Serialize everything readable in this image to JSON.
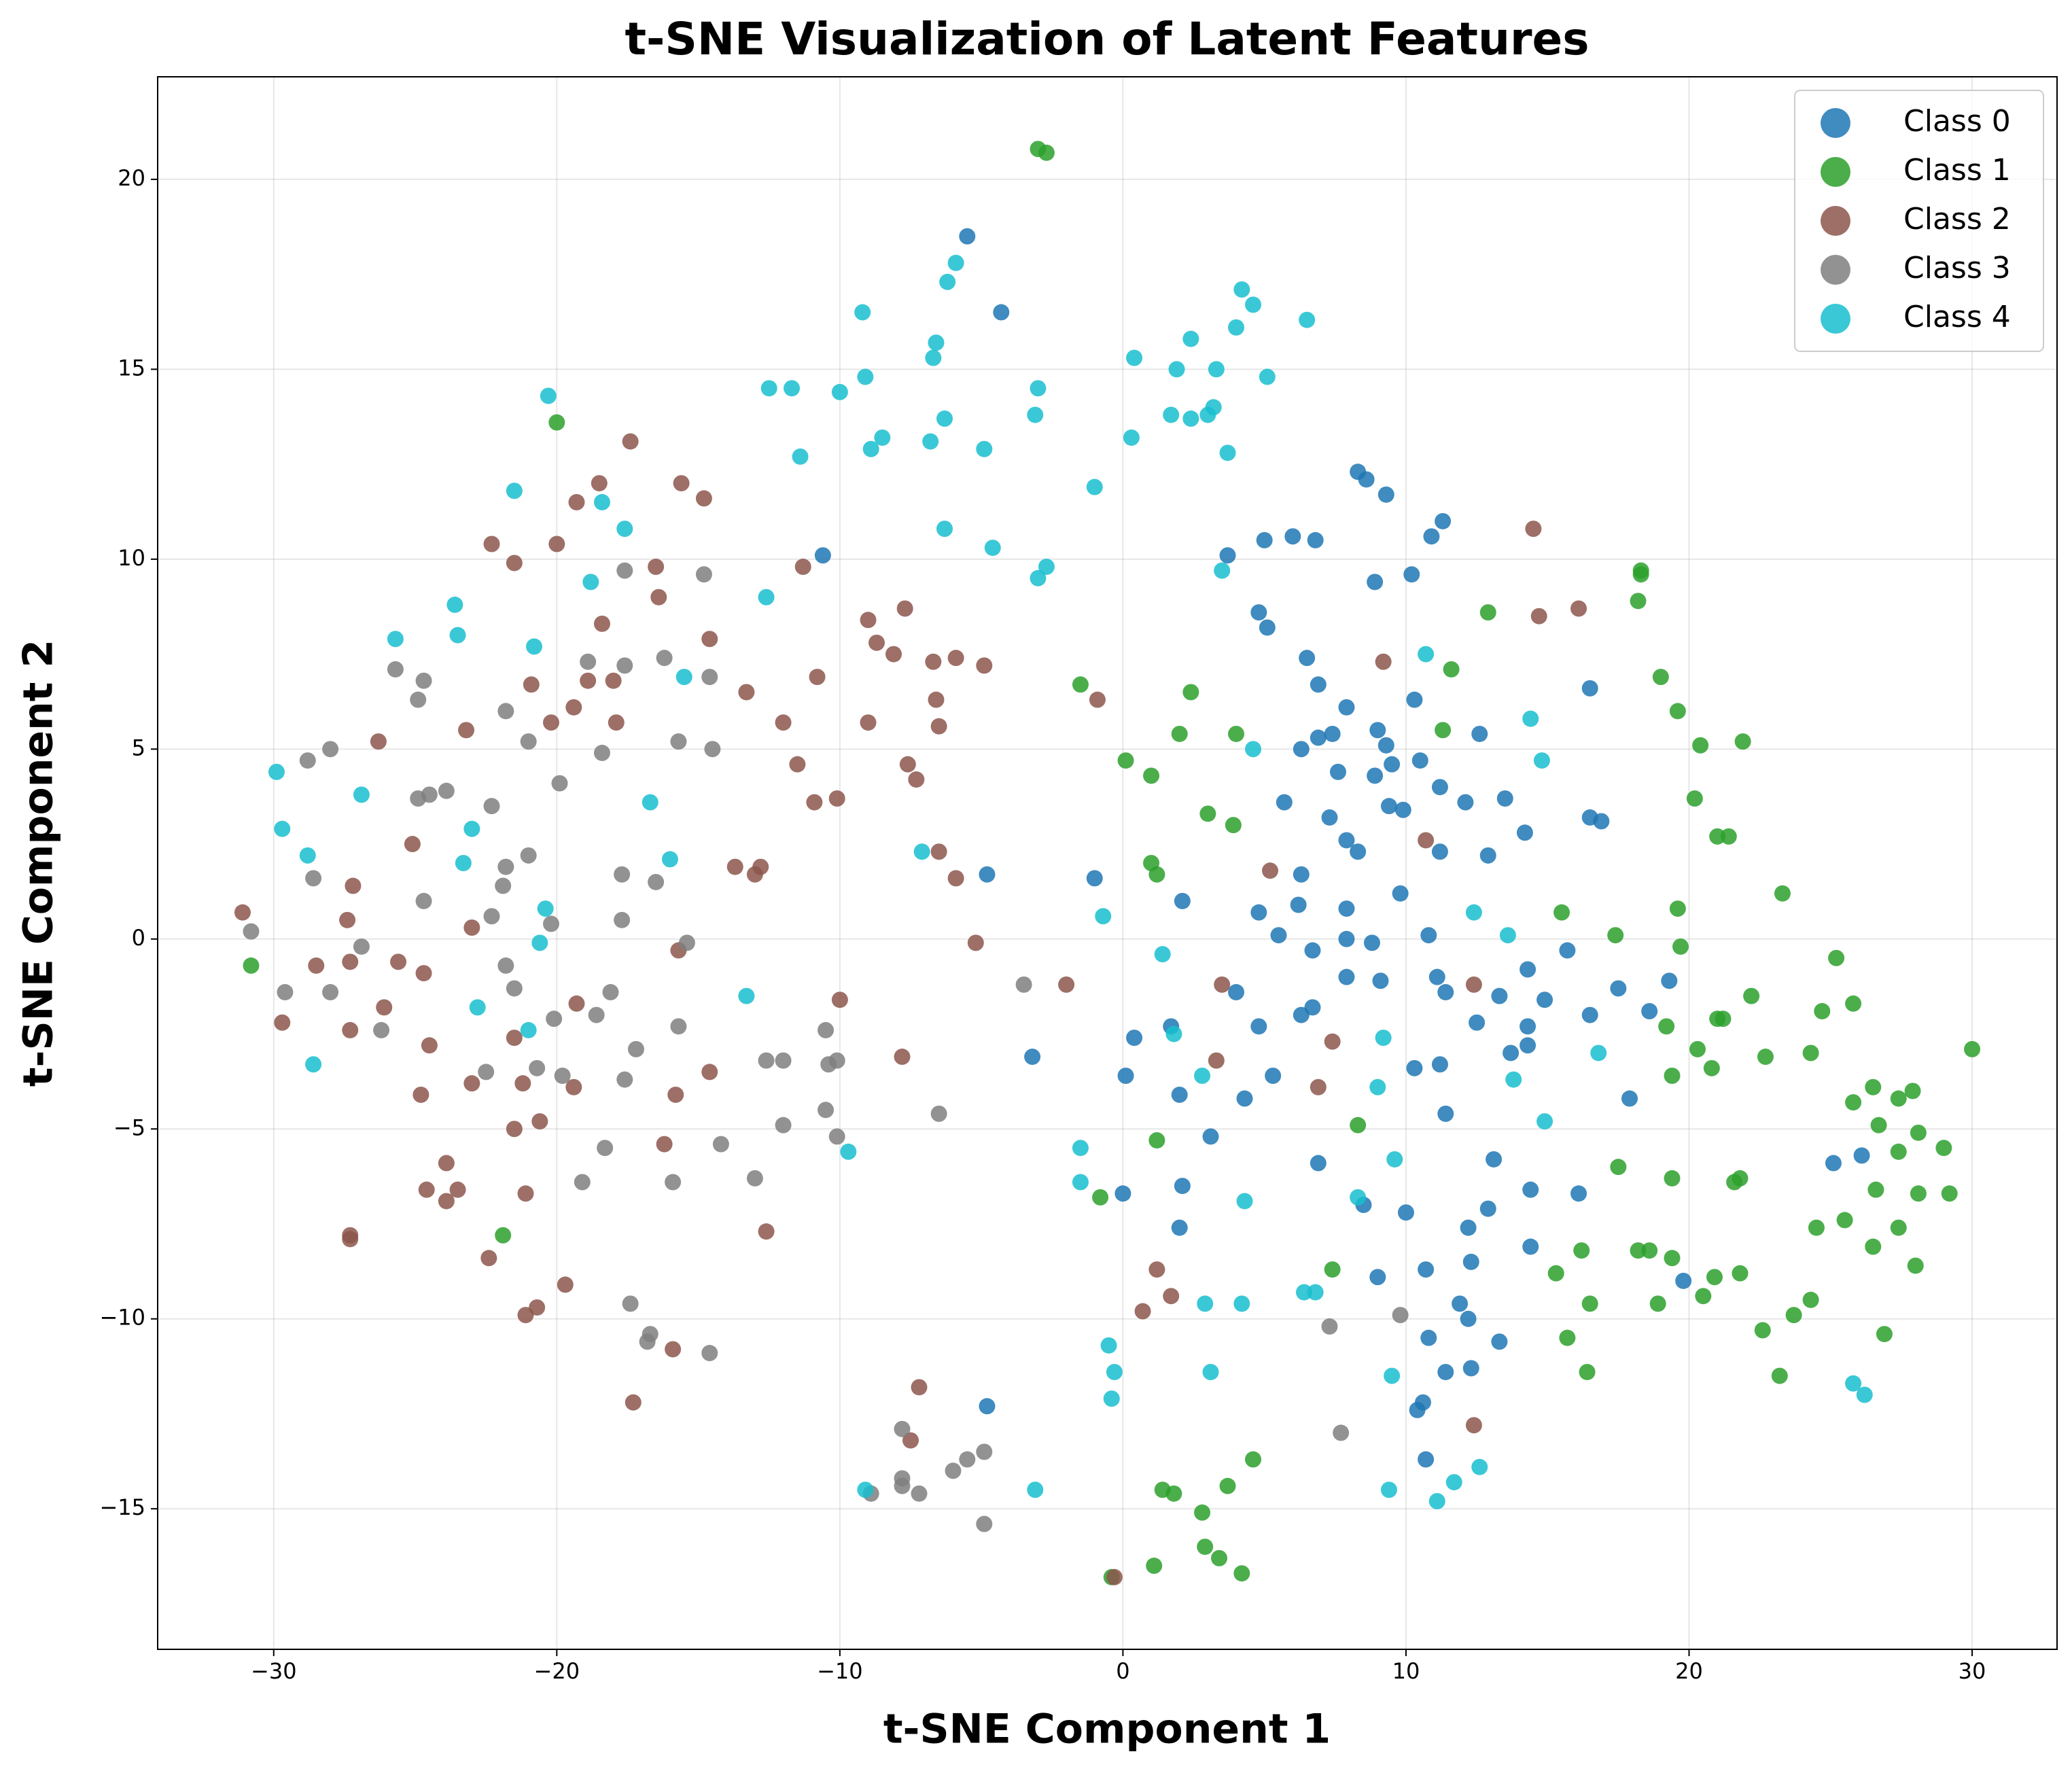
{
  "chart_data": {
    "type": "scatter",
    "title": "t-SNE Visualization of Latent Features",
    "xlabel": "t-SNE Component 1",
    "ylabel": "t-SNE Component 2",
    "xlim": [
      -34.1,
      33.0
    ],
    "ylim": [
      -18.7,
      22.7
    ],
    "xticks": [
      {
        "value": -30,
        "label": "−30"
      },
      {
        "value": -20,
        "label": "−20"
      },
      {
        "value": -10,
        "label": "−10"
      },
      0,
      10,
      20,
      30
    ],
    "yticks": [
      {
        "value": -15,
        "label": "−15"
      },
      {
        "value": -10,
        "label": "−10"
      },
      {
        "value": -5,
        "label": "−5"
      },
      0,
      5,
      10,
      15,
      20
    ],
    "grid": true,
    "legend": "upper right",
    "series": [
      {
        "name": "Class 0",
        "color": "#1f77b4",
        "x": [
          -5.5,
          -4.3,
          -10.6,
          -4.8,
          -3.2,
          -4.8,
          8.3,
          8.6,
          9.3,
          11.3,
          10.9,
          6.0,
          6.8,
          5.0,
          3.7,
          10.2,
          8.9,
          4.8,
          5.1,
          6.5,
          6.9,
          16.5,
          7.9,
          10.3,
          9.0,
          12.6,
          6.9,
          7.4,
          6.3,
          9.3,
          9.5,
          10.5,
          7.6,
          8.9,
          11.2,
          13.5,
          12.1,
          5.7,
          9.4,
          9.9,
          7.3,
          16.5,
          16.9,
          14.2,
          7.9,
          8.3,
          11.2,
          12.9,
          6.3,
          -1.0,
          2.1,
          9.8,
          4.8,
          6.2,
          7.9,
          5.5,
          7.9,
          10.8,
          8.8,
          6.7,
          15.7,
          14.3,
          11.1,
          7.9,
          9.1,
          19.3,
          4.0,
          11.4,
          17.5,
          13.3,
          14.9,
          6.7,
          6.3,
          16.5,
          18.6,
          1.7,
          4.8,
          12.5,
          14.3,
          0.4,
          14.3,
          13.7,
          10.3,
          11.2,
          0.1,
          5.3,
          2.0,
          4.3,
          17.9,
          11.4,
          3.1,
          13.1,
          6.9,
          25.1,
          26.1,
          0.0,
          2.1,
          14.4,
          16.1,
          8.5,
          10.0,
          12.9,
          2.0,
          12.2,
          14.4,
          12.3,
          10.7,
          9.0,
          19.8,
          11.9,
          12.2,
          10.8,
          13.3,
          11.4,
          12.3,
          10.6,
          10.4,
          10.7
        ],
        "y": [
          18.5,
          16.5,
          10.1,
          1.7,
          -3.1,
          -12.3,
          12.3,
          12.1,
          11.7,
          11.0,
          10.6,
          10.6,
          10.5,
          10.5,
          10.1,
          9.6,
          9.4,
          8.6,
          8.2,
          7.4,
          6.7,
          6.6,
          6.1,
          6.3,
          5.5,
          5.4,
          5.3,
          5.4,
          5.0,
          5.1,
          4.6,
          4.7,
          4.4,
          4.3,
          4.0,
          3.7,
          3.6,
          3.6,
          3.5,
          3.4,
          3.2,
          3.2,
          3.1,
          2.8,
          2.6,
          2.3,
          2.3,
          2.2,
          1.7,
          1.6,
          1.0,
          1.2,
          0.7,
          0.9,
          0.8,
          0.1,
          0.0,
          0.1,
          -0.1,
          -0.3,
          -0.3,
          -0.8,
          -1.0,
          -1.0,
          -1.1,
          -1.1,
          -1.4,
          -1.4,
          -1.3,
          -1.5,
          -1.6,
          -1.8,
          -2.0,
          -2.0,
          -1.9,
          -2.3,
          -2.3,
          -2.2,
          -2.3,
          -2.6,
          -2.8,
          -3.0,
          -3.4,
          -3.3,
          -3.6,
          -3.6,
          -4.1,
          -4.2,
          -4.2,
          -4.6,
          -5.2,
          -5.8,
          -5.9,
          -5.9,
          -5.7,
          -6.7,
          -6.5,
          -6.6,
          -6.7,
          -7.0,
          -7.2,
          -7.1,
          -7.6,
          -7.6,
          -8.1,
          -8.5,
          -8.7,
          -8.9,
          -9.0,
          -9.6,
          -10.0,
          -10.5,
          -10.6,
          -11.4,
          -11.3,
          -12.2,
          -12.4,
          -13.7
        ]
      },
      {
        "name": "Class 1",
        "color": "#2ca02c",
        "x": [
          -3.0,
          -2.7,
          -20.0,
          18.3,
          18.3,
          18.2,
          12.9,
          11.6,
          19.0,
          -1.5,
          2.4,
          19.6,
          11.3,
          2.0,
          4.0,
          21.9,
          20.4,
          0.1,
          1.0,
          20.2,
          3.0,
          3.9,
          21.0,
          21.4,
          1.0,
          1.2,
          23.3,
          19.6,
          15.5,
          17.4,
          19.7,
          25.2,
          -30.8,
          22.2,
          25.8,
          24.7,
          21.2,
          21.0,
          19.2,
          20.3,
          30.0,
          24.3,
          22.7,
          20.8,
          19.4,
          26.5,
          27.9,
          27.4,
          25.8,
          8.3,
          26.7,
          28.1,
          1.2,
          29.0,
          27.4,
          17.5,
          21.8,
          19.4,
          21.6,
          26.6,
          -0.8,
          28.1,
          29.2,
          25.5,
          24.5,
          27.4,
          -21.9,
          26.5,
          16.2,
          18.2,
          18.6,
          19.4,
          28.0,
          7.4,
          15.3,
          21.8,
          20.9,
          20.5,
          24.3,
          16.5,
          18.9,
          23.7,
          22.6,
          15.7,
          26.9,
          16.4,
          23.2,
          4.6,
          3.7,
          1.4,
          1.8,
          2.8,
          2.9,
          3.4,
          1.1,
          4.2,
          -0.4
        ],
        "y": [
          20.8,
          20.7,
          13.6,
          9.7,
          9.6,
          8.9,
          8.6,
          7.1,
          6.9,
          6.7,
          6.5,
          6.0,
          5.5,
          5.4,
          5.4,
          5.2,
          5.1,
          4.7,
          4.3,
          3.7,
          3.3,
          3.0,
          2.7,
          2.7,
          2.0,
          1.7,
          1.2,
          0.8,
          0.7,
          0.1,
          -0.2,
          -0.5,
          -0.7,
          -1.5,
          -1.7,
          -1.9,
          -2.1,
          -2.1,
          -2.3,
          -2.9,
          -2.9,
          -3.0,
          -3.1,
          -3.4,
          -3.6,
          -3.9,
          -4.0,
          -4.2,
          -4.3,
          -4.9,
          -4.9,
          -5.1,
          -5.3,
          -5.5,
          -5.6,
          -6.0,
          -6.3,
          -6.3,
          -6.4,
          -6.6,
          -6.8,
          -6.7,
          -6.7,
          -7.4,
          -7.6,
          -7.6,
          -7.8,
          -8.1,
          -8.2,
          -8.2,
          -8.2,
          -8.4,
          -8.6,
          -8.7,
          -8.8,
          -8.8,
          -8.9,
          -9.4,
          -9.5,
          -9.6,
          -9.6,
          -9.9,
          -10.3,
          -10.5,
          -10.4,
          -11.4,
          -11.5,
          -13.7,
          -14.4,
          -14.5,
          -14.6,
          -15.1,
          -16.0,
          -16.3,
          -16.5,
          -16.7,
          -16.8
        ]
      },
      {
        "name": "Class 2",
        "color": "#8c564b",
        "x": [
          -17.4,
          -15.6,
          -18.5,
          -14.8,
          -19.3,
          14.5,
          -22.3,
          -20.0,
          -21.5,
          -11.3,
          -16.5,
          -16.4,
          16.1,
          -7.7,
          14.7,
          -9.0,
          -18.4,
          -14.6,
          -8.7,
          -8.1,
          -5.9,
          -6.7,
          9.2,
          -4.9,
          -10.8,
          -18.9,
          -18.0,
          -20.9,
          -13.3,
          -0.9,
          -6.6,
          -19.4,
          -20.2,
          -12.0,
          -17.9,
          -9.0,
          -6.5,
          -23.2,
          -26.3,
          -7.6,
          -11.5,
          -7.3,
          -10.9,
          -10.1,
          10.7,
          -25.1,
          -6.5,
          -13.7,
          -12.8,
          -13.0,
          5.2,
          -5.9,
          -27.2,
          -31.1,
          -27.4,
          -23.0,
          -5.2,
          -15.7,
          -28.5,
          -27.3,
          -25.6,
          -24.7,
          12.4,
          -2.0,
          3.5,
          -10.0,
          -19.3,
          -26.1,
          -29.7,
          -27.3,
          -21.5,
          7.4,
          -24.5,
          -7.8,
          3.3,
          -14.6,
          -23.0,
          -21.2,
          -19.4,
          6.9,
          -24.8,
          -15.8,
          -20.6,
          -21.5,
          -16.2,
          -23.9,
          -24.6,
          -23.5,
          -23.9,
          -21.1,
          -12.6,
          -27.3,
          -27.3,
          -22.4,
          1.2,
          -19.7,
          1.7,
          -20.7,
          -21.1,
          0.7,
          -15.9,
          -7.2,
          -17.3,
          12.4,
          -7.5,
          -0.3
        ],
        "y": [
          13.1,
          12.0,
          12.0,
          11.6,
          11.5,
          10.8,
          10.4,
          10.4,
          9.9,
          9.8,
          9.8,
          9.0,
          8.7,
          8.7,
          8.5,
          8.4,
          8.3,
          7.9,
          7.8,
          7.5,
          7.4,
          7.3,
          7.3,
          7.2,
          6.9,
          6.8,
          6.8,
          6.7,
          6.5,
          6.3,
          6.3,
          6.1,
          5.7,
          5.7,
          5.7,
          5.7,
          5.6,
          5.5,
          5.2,
          4.6,
          4.6,
          4.2,
          3.6,
          3.7,
          2.6,
          2.5,
          2.3,
          1.9,
          1.9,
          1.7,
          1.8,
          1.6,
          1.4,
          0.7,
          0.5,
          0.3,
          -0.1,
          -0.3,
          -0.7,
          -0.6,
          -0.6,
          -0.9,
          -1.2,
          -1.2,
          -1.2,
          -1.6,
          -1.7,
          -1.8,
          -2.2,
          -2.4,
          -2.6,
          -2.7,
          -2.8,
          -3.1,
          -3.2,
          -3.5,
          -3.8,
          -3.8,
          -3.9,
          -3.9,
          -4.1,
          -4.1,
          -4.8,
          -5.0,
          -5.4,
          -5.9,
          -6.6,
          -6.6,
          -6.9,
          -6.7,
          -7.7,
          -7.8,
          -7.9,
          -8.4,
          -8.7,
          -9.1,
          -9.4,
          -9.7,
          -9.9,
          -9.8,
          -10.8,
          -11.8,
          -12.2,
          -12.8,
          -13.2,
          -16.8
        ]
      },
      {
        "name": "Class 3",
        "color": "#7f7f7f",
        "x": [
          -17.6,
          -14.8,
          -17.6,
          -18.9,
          -16.2,
          -25.7,
          -14.6,
          -24.7,
          -24.9,
          -21.8,
          -21.0,
          -15.7,
          -14.5,
          -28.0,
          -28.8,
          -18.4,
          -19.9,
          -23.9,
          -24.5,
          -24.9,
          -22.3,
          -21.0,
          -21.8,
          -17.7,
          -16.5,
          -28.6,
          -21.9,
          -24.7,
          -22.3,
          -17.7,
          -20.2,
          -30.8,
          -15.4,
          -26.9,
          -21.8,
          -21.5,
          -3.5,
          -29.6,
          -28.0,
          -18.1,
          -18.6,
          -20.1,
          -15.7,
          -26.2,
          -10.5,
          -17.2,
          -12.6,
          -12.0,
          -10.1,
          -10.4,
          -20.7,
          -22.5,
          -19.8,
          -17.6,
          -10.5,
          -6.5,
          -12.0,
          -10.1,
          -14.2,
          -18.3,
          -13.0,
          -19.1,
          -15.9,
          7.3,
          9.8,
          -17.4,
          -16.7,
          -16.8,
          -14.6,
          7.7,
          -7.8,
          -7.8,
          -6.0,
          -5.5,
          -4.9,
          -7.8,
          -7.2,
          -8.9,
          -4.9
        ],
        "y": [
          9.7,
          9.6,
          7.2,
          7.3,
          7.4,
          7.1,
          6.9,
          6.8,
          6.3,
          6.0,
          5.2,
          5.2,
          5.0,
          5.0,
          4.7,
          4.9,
          4.1,
          3.9,
          3.8,
          3.7,
          3.5,
          2.2,
          1.9,
          1.7,
          1.5,
          1.6,
          1.4,
          1.0,
          0.6,
          0.5,
          0.4,
          0.2,
          -0.1,
          -0.2,
          -0.7,
          -1.3,
          -1.2,
          -1.4,
          -1.4,
          -1.4,
          -2.0,
          -2.1,
          -2.3,
          -2.4,
          -2.4,
          -2.9,
          -3.2,
          -3.2,
          -3.2,
          -3.3,
          -3.4,
          -3.5,
          -3.6,
          -3.7,
          -4.5,
          -4.6,
          -4.9,
          -5.2,
          -5.4,
          -5.5,
          -6.3,
          -6.4,
          -6.4,
          -10.2,
          -9.9,
          -9.6,
          -10.4,
          -10.6,
          -10.9,
          -13.0,
          -12.9,
          -14.2,
          -14.0,
          -13.7,
          -13.5,
          -14.4,
          -14.6,
          -14.6,
          -15.4
        ]
      },
      {
        "name": "Class 4",
        "color": "#17becf",
        "x": [
          -5.9,
          -6.2,
          4.2,
          4.6,
          -9.2,
          6.5,
          4.0,
          -6.6,
          2.4,
          -6.7,
          0.4,
          1.9,
          3.3,
          -9.1,
          5.1,
          -12.5,
          -11.7,
          -10.0,
          -3.0,
          -20.3,
          3.2,
          -3.1,
          1.7,
          2.4,
          3.0,
          -6.3,
          0.3,
          -8.5,
          -6.8,
          -8.9,
          -4.9,
          3.7,
          -11.4,
          -1.0,
          -21.5,
          -18.4,
          -17.6,
          -6.3,
          -4.6,
          -2.7,
          3.5,
          -3.0,
          -18.8,
          -12.6,
          -23.6,
          -23.5,
          -25.7,
          -20.8,
          10.7,
          -15.5,
          14.4,
          4.6,
          14.8,
          -29.9,
          -26.9,
          -16.7,
          -29.7,
          -23.0,
          -7.1,
          -28.8,
          -16.0,
          -23.3,
          -20.4,
          12.4,
          -0.7,
          13.6,
          -20.6,
          1.4,
          -13.3,
          -22.8,
          1.8,
          -21.0,
          9.2,
          16.8,
          -28.6,
          2.8,
          13.8,
          9.0,
          14.9,
          -9.7,
          -1.5,
          9.6,
          -1.5,
          8.3,
          4.3,
          6.4,
          6.8,
          2.9,
          4.2,
          -0.5,
          -0.3,
          3.1,
          9.5,
          25.8,
          26.2,
          -0.4,
          12.6,
          11.7,
          -9.1,
          -3.1,
          9.4,
          11.1
        ],
        "y": [
          17.8,
          17.3,
          17.1,
          16.7,
          16.5,
          16.3,
          16.1,
          15.7,
          15.8,
          15.3,
          15.3,
          15.0,
          15.0,
          14.8,
          14.8,
          14.5,
          14.5,
          14.4,
          14.5,
          14.3,
          14.0,
          13.8,
          13.8,
          13.7,
          13.8,
          13.7,
          13.2,
          13.2,
          13.1,
          12.9,
          12.9,
          12.8,
          12.7,
          11.9,
          11.8,
          11.5,
          10.8,
          10.8,
          10.3,
          9.8,
          9.7,
          9.5,
          9.4,
          9.0,
          8.8,
          8.0,
          7.9,
          7.7,
          7.5,
          6.9,
          5.8,
          5.0,
          4.7,
          4.4,
          3.8,
          3.6,
          2.9,
          2.9,
          2.3,
          2.2,
          2.1,
          2.0,
          0.8,
          0.7,
          0.6,
          0.1,
          -0.1,
          -0.4,
          -1.5,
          -1.8,
          -2.5,
          -2.4,
          -2.6,
          -3.0,
          -3.3,
          -3.6,
          -3.7,
          -3.9,
          -4.8,
          -5.6,
          -5.5,
          -5.8,
          -6.4,
          -6.8,
          -6.9,
          -9.3,
          -9.3,
          -9.6,
          -9.6,
          -10.7,
          -11.4,
          -11.4,
          -11.5,
          -11.7,
          -12.0,
          -12.1,
          -13.9,
          -14.3,
          -14.5,
          -14.5,
          -14.5,
          -14.8
        ]
      }
    ]
  }
}
